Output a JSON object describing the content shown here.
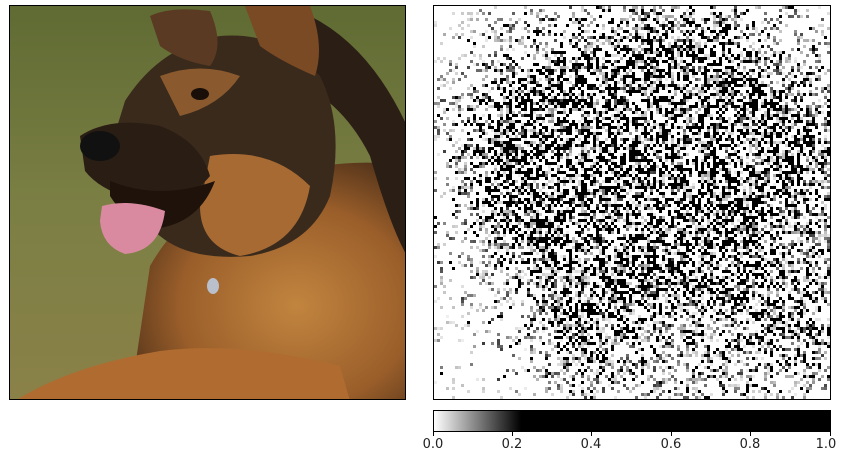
{
  "colors": {
    "grass": "#6f7a3e",
    "fur_tan": "#b8753a",
    "fur_dark": "#2a1d14",
    "tongue": "#d98aa0",
    "colorbar_low": "#ffffff",
    "colorbar_high": "#000000"
  },
  "colorbar": {
    "ticks": [
      "0.0",
      "0.2",
      "0.4",
      "0.6",
      "0.8",
      "1.0"
    ],
    "range": [
      0.0,
      1.0
    ],
    "saturation_point": 0.22
  }
}
